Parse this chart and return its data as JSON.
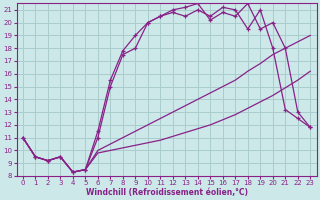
{
  "bg_color": "#cce8e8",
  "grid_color": "#aacccc",
  "line_color": "#882288",
  "xlabel": "Windchill (Refroidissement éolien,°C)",
  "xlim": [
    -0.5,
    23.5
  ],
  "ylim": [
    8,
    21.5
  ],
  "yticks": [
    8,
    9,
    10,
    11,
    12,
    13,
    14,
    15,
    16,
    17,
    18,
    19,
    20,
    21
  ],
  "xticks": [
    0,
    1,
    2,
    3,
    4,
    5,
    6,
    7,
    8,
    9,
    10,
    11,
    12,
    13,
    14,
    15,
    16,
    17,
    18,
    19,
    20,
    21,
    22,
    23
  ],
  "series": [
    {
      "x": [
        0,
        1,
        2,
        3,
        4,
        5,
        6,
        7,
        8,
        9,
        10,
        11,
        12,
        13,
        14,
        15,
        16,
        17,
        18,
        19,
        20,
        21,
        22,
        23
      ],
      "y": [
        11,
        9.5,
        9.2,
        9.5,
        8.3,
        8.5,
        9.8,
        10.0,
        10.2,
        10.4,
        10.6,
        10.8,
        11.1,
        11.4,
        11.7,
        12.0,
        12.4,
        12.8,
        13.3,
        13.8,
        14.3,
        14.9,
        15.5,
        16.2
      ],
      "marker": false,
      "lw": 0.9
    },
    {
      "x": [
        0,
        1,
        2,
        3,
        4,
        5,
        6,
        7,
        8,
        9,
        10,
        11,
        12,
        13,
        14,
        15,
        16,
        17,
        18,
        19,
        20,
        21,
        22,
        23
      ],
      "y": [
        11,
        9.5,
        9.2,
        9.5,
        8.3,
        8.5,
        10.0,
        10.5,
        11.0,
        11.5,
        12.0,
        12.5,
        13.0,
        13.5,
        14.0,
        14.5,
        15.0,
        15.5,
        16.2,
        16.8,
        17.5,
        18.0,
        18.5,
        19.0
      ],
      "marker": false,
      "lw": 0.9
    },
    {
      "x": [
        0,
        1,
        2,
        3,
        4,
        5,
        6,
        7,
        8,
        9,
        10,
        11,
        12,
        13,
        14,
        15,
        16,
        17,
        18,
        19,
        20,
        21,
        22,
        23
      ],
      "y": [
        11,
        9.5,
        9.2,
        9.5,
        8.3,
        8.5,
        11.0,
        15.0,
        17.5,
        18.0,
        20.0,
        20.5,
        20.8,
        20.5,
        21.0,
        20.5,
        21.2,
        21.0,
        19.5,
        21.0,
        18.0,
        13.2,
        12.5,
        11.8
      ],
      "marker": true,
      "lw": 0.9
    },
    {
      "x": [
        0,
        1,
        2,
        3,
        4,
        5,
        6,
        7,
        8,
        9,
        10,
        11,
        12,
        13,
        14,
        15,
        16,
        17,
        18,
        19,
        20,
        21,
        22,
        23
      ],
      "y": [
        11,
        9.5,
        9.2,
        9.5,
        8.3,
        8.5,
        11.5,
        15.5,
        17.8,
        19.0,
        20.0,
        20.5,
        21.0,
        21.2,
        21.5,
        20.2,
        20.8,
        20.5,
        21.5,
        19.5,
        20.0,
        18.0,
        13.0,
        11.8
      ],
      "marker": true,
      "lw": 0.9
    }
  ]
}
